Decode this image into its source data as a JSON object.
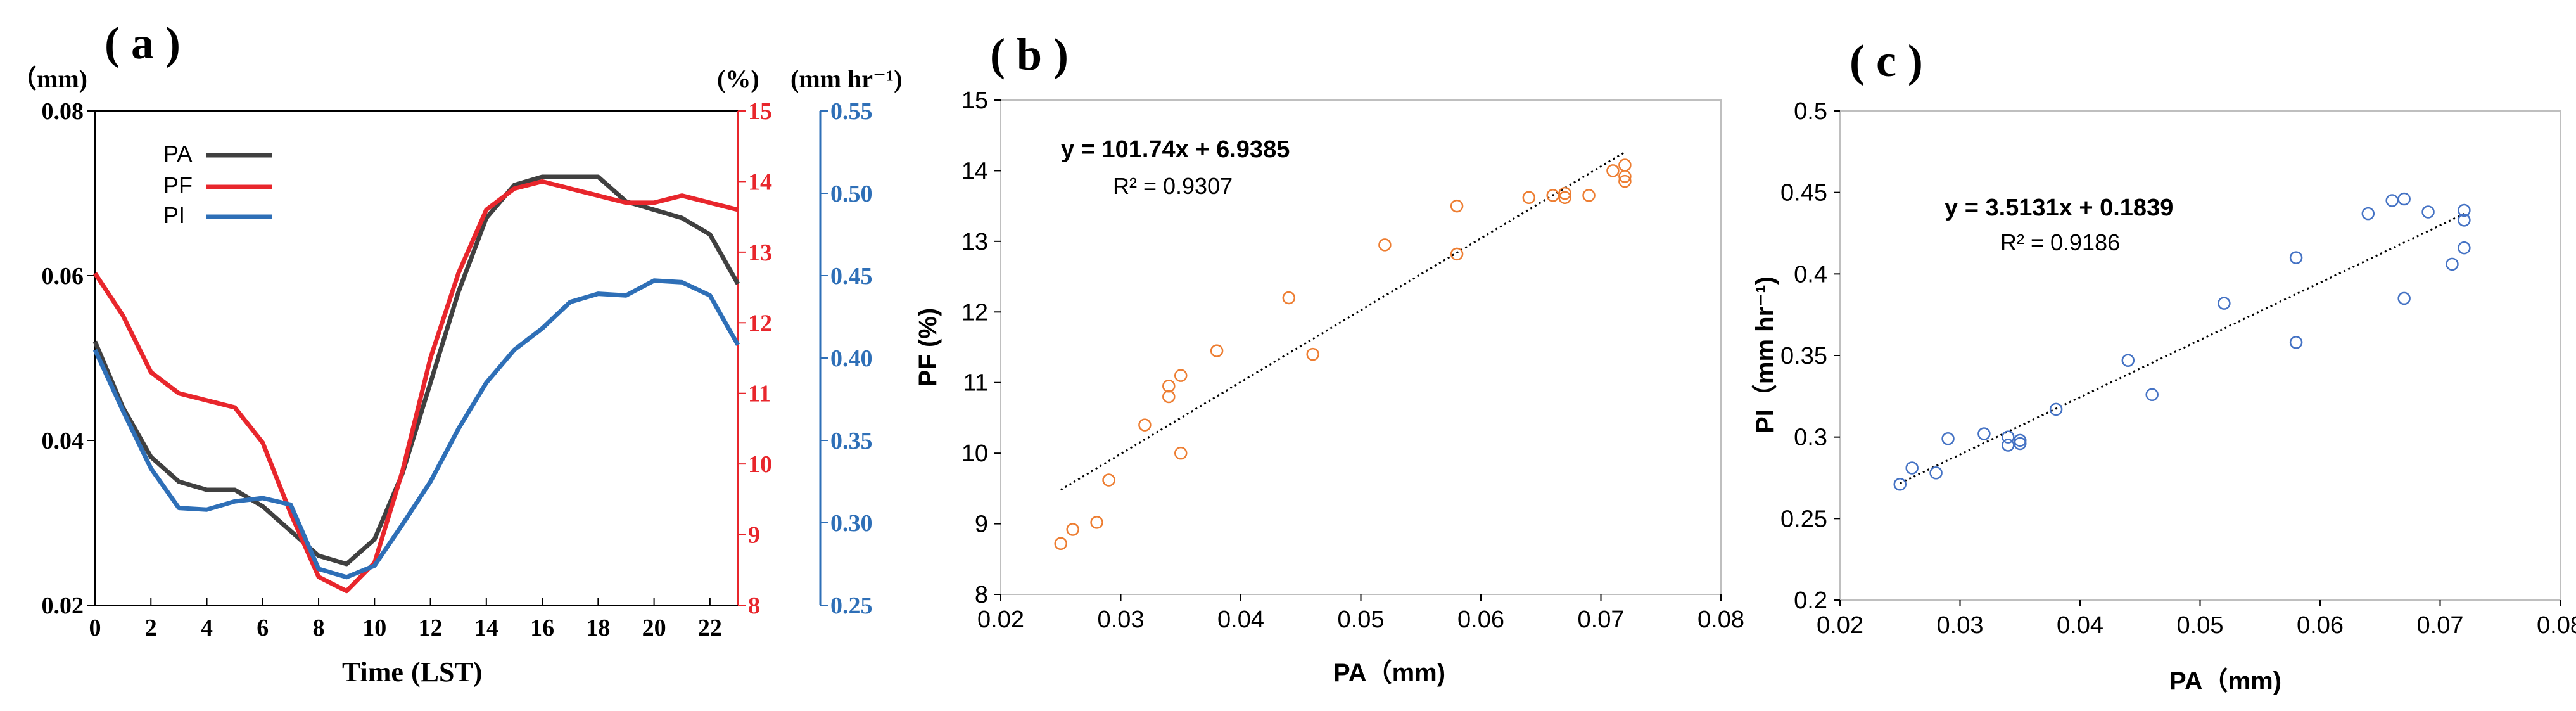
{
  "panels": {
    "a": {
      "label": "( a )"
    },
    "b": {
      "label": "( b )"
    },
    "c": {
      "label": "( c )"
    }
  },
  "chart_data": [
    {
      "id": "a",
      "type": "line",
      "xlabel": "Time",
      "xlabel_suffix": "(LST)",
      "x": [
        0,
        1,
        2,
        3,
        4,
        5,
        6,
        7,
        8,
        9,
        10,
        11,
        12,
        13,
        14,
        15,
        16,
        17,
        18,
        19,
        20,
        21,
        22,
        23
      ],
      "xticks": [
        "0",
        "2",
        "4",
        "6",
        "8",
        "10",
        "12",
        "14",
        "16",
        "18",
        "20",
        "22"
      ],
      "xtick_values": [
        0,
        2,
        4,
        6,
        8,
        10,
        12,
        14,
        16,
        18,
        20,
        22
      ],
      "xlim": [
        0,
        23
      ],
      "axes": {
        "left": {
          "unit": "（mm)",
          "ylim": [
            0.02,
            0.08
          ],
          "ticks": [
            "0.02",
            "0.04",
            "0.06",
            "0.08"
          ],
          "tick_values": [
            0.02,
            0.04,
            0.06,
            0.08
          ],
          "color": "#000000"
        },
        "right1": {
          "unit": "(%)",
          "ylim": [
            8,
            15
          ],
          "ticks": [
            "8",
            "9",
            "10",
            "11",
            "12",
            "13",
            "14",
            "15"
          ],
          "tick_values": [
            8,
            9,
            10,
            11,
            12,
            13,
            14,
            15
          ],
          "color": "#e8262c"
        },
        "right2": {
          "unit": "(mm hr⁻¹)",
          "ylim": [
            0.25,
            0.55
          ],
          "ticks": [
            "0.25",
            "0.30",
            "0.35",
            "0.40",
            "0.45",
            "0.50",
            "0.55"
          ],
          "tick_values": [
            0.25,
            0.3,
            0.35,
            0.4,
            0.45,
            0.5,
            0.55
          ],
          "color": "#2e6fb7"
        }
      },
      "series": [
        {
          "name": "PA",
          "axis": "left",
          "color": "#404040",
          "values": [
            0.052,
            0.044,
            0.038,
            0.035,
            0.034,
            0.034,
            0.032,
            0.029,
            0.026,
            0.025,
            0.028,
            0.036,
            0.047,
            0.058,
            0.067,
            0.071,
            0.072,
            0.072,
            0.072,
            0.069,
            0.068,
            0.067,
            0.065,
            0.059
          ]
        },
        {
          "name": "PF",
          "axis": "right1",
          "color": "#e8262c",
          "values": [
            12.7,
            12.1,
            11.3,
            11.0,
            10.9,
            10.8,
            10.3,
            9.3,
            8.4,
            8.2,
            8.6,
            9.9,
            11.5,
            12.7,
            13.6,
            13.9,
            14.0,
            13.9,
            13.8,
            13.7,
            13.7,
            13.8,
            13.7,
            13.6
          ]
        },
        {
          "name": "PI",
          "axis": "right2",
          "color": "#2e6fb7",
          "values": [
            0.405,
            0.368,
            0.333,
            0.309,
            0.308,
            0.313,
            0.315,
            0.311,
            0.272,
            0.267,
            0.274,
            0.299,
            0.325,
            0.357,
            0.385,
            0.405,
            0.418,
            0.434,
            0.439,
            0.438,
            0.447,
            0.446,
            0.438,
            0.408
          ]
        }
      ]
    },
    {
      "id": "b",
      "type": "scatter",
      "xlabel": "PA（mm)",
      "ylabel": "PF (%)",
      "xlim": [
        0.02,
        0.08
      ],
      "ylim": [
        8,
        15
      ],
      "xticks": [
        "0.02",
        "0.03",
        "0.04",
        "0.05",
        "0.06",
        "0.07",
        "0.08"
      ],
      "xtick_values": [
        0.02,
        0.03,
        0.04,
        0.05,
        0.06,
        0.07,
        0.08
      ],
      "yticks": [
        "8",
        "9",
        "10",
        "11",
        "12",
        "13",
        "14",
        "15"
      ],
      "ytick_values": [
        8,
        9,
        10,
        11,
        12,
        13,
        14,
        15
      ],
      "marker_color": "#ed7d31",
      "points": [
        [
          0.025,
          8.72
        ],
        [
          0.026,
          8.92
        ],
        [
          0.028,
          9.02
        ],
        [
          0.029,
          9.62
        ],
        [
          0.032,
          10.4
        ],
        [
          0.034,
          10.8
        ],
        [
          0.034,
          10.95
        ],
        [
          0.035,
          11.1
        ],
        [
          0.035,
          10.0
        ],
        [
          0.038,
          11.45
        ],
        [
          0.044,
          12.2
        ],
        [
          0.046,
          11.4
        ],
        [
          0.052,
          12.95
        ],
        [
          0.058,
          13.5
        ],
        [
          0.058,
          12.82
        ],
        [
          0.064,
          13.62
        ],
        [
          0.066,
          13.65
        ],
        [
          0.067,
          13.68
        ],
        [
          0.067,
          13.62
        ],
        [
          0.069,
          13.65
        ],
        [
          0.071,
          14.0
        ],
        [
          0.072,
          14.08
        ],
        [
          0.072,
          13.92
        ],
        [
          0.072,
          13.85
        ]
      ],
      "trendline": {
        "slope": 101.74,
        "intercept": 6.9385,
        "x_range": [
          0.025,
          0.072
        ]
      },
      "equation": "y = 101.74x + 6.9385",
      "r2": "R² = 0.9307"
    },
    {
      "id": "c",
      "type": "scatter",
      "xlabel": "PA（mm)",
      "ylabel": "PI（mm hr⁻¹)",
      "xlim": [
        0.02,
        0.08
      ],
      "ylim": [
        0.2,
        0.5
      ],
      "xticks": [
        "0.02",
        "0.03",
        "0.04",
        "0.05",
        "0.06",
        "0.07",
        "0.08"
      ],
      "xtick_values": [
        0.02,
        0.03,
        0.04,
        0.05,
        0.06,
        0.07,
        0.08
      ],
      "yticks": [
        "0.2",
        "0.25",
        "0.3",
        "0.35",
        "0.4",
        "0.45",
        "0.5"
      ],
      "ytick_values": [
        0.2,
        0.25,
        0.3,
        0.35,
        0.4,
        0.45,
        0.5
      ],
      "marker_color": "#4472c4",
      "points": [
        [
          0.025,
          0.271
        ],
        [
          0.026,
          0.281
        ],
        [
          0.028,
          0.278
        ],
        [
          0.029,
          0.299
        ],
        [
          0.032,
          0.302
        ],
        [
          0.034,
          0.295
        ],
        [
          0.034,
          0.3
        ],
        [
          0.035,
          0.298
        ],
        [
          0.035,
          0.296
        ],
        [
          0.038,
          0.317
        ],
        [
          0.044,
          0.347
        ],
        [
          0.046,
          0.326
        ],
        [
          0.052,
          0.382
        ],
        [
          0.058,
          0.41
        ],
        [
          0.058,
          0.358
        ],
        [
          0.064,
          0.437
        ],
        [
          0.066,
          0.445
        ],
        [
          0.067,
          0.446
        ],
        [
          0.067,
          0.385
        ],
        [
          0.069,
          0.438
        ],
        [
          0.071,
          0.406
        ],
        [
          0.072,
          0.439
        ],
        [
          0.072,
          0.433
        ],
        [
          0.072,
          0.416
        ]
      ],
      "trendline": {
        "slope": 3.5131,
        "intercept": 0.1839,
        "x_range": [
          0.025,
          0.072
        ]
      },
      "equation": "y = 3.5131x + 0.1839",
      "r2": "R² = 0.9186"
    }
  ]
}
